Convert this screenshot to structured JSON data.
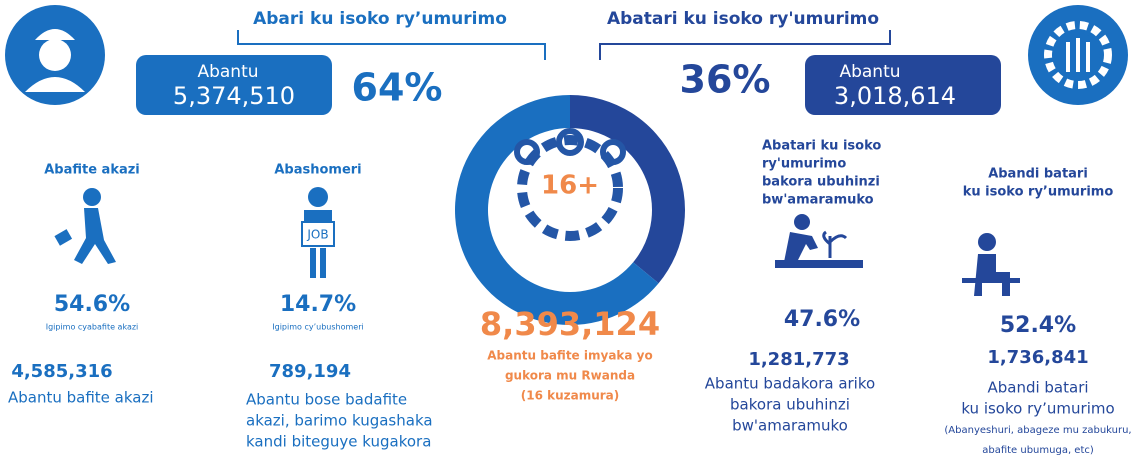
{
  "left": {
    "title": "Abari ku isoko ry’umurimo",
    "people_label": "Abantu",
    "people": "5,374,510",
    "share": {
      "value": 64,
      "label": "64%"
    }
  },
  "right": {
    "title": "Abatari ku isoko ry'umurimo",
    "people_label": "Abantu",
    "people": "3,018,614",
    "share": {
      "value": 36,
      "label": "36%"
    }
  },
  "center": {
    "badge": "16+",
    "total": "8,393,124",
    "caption": [
      "Abantu bafite imyaka yo",
      "gukora mu Rwanda",
      "(16 kuzamura)"
    ]
  },
  "groups": [
    {
      "title": [
        "Abafite akazi"
      ],
      "rate": "54.6%",
      "rate_label": "Igipimo cyabafite akazi",
      "count": "4,585,316",
      "description": [
        "Abantu bafite akazi"
      ]
    },
    {
      "title": [
        "Abashomeri"
      ],
      "icon_text": "JOB",
      "rate": "14.7%",
      "rate_label": "Igipimo cy’ubushomeri",
      "count": "789,194",
      "description": [
        "Abantu bose badafite",
        "akazi, barimo kugashaka",
        "kandi biteguye kugakora"
      ]
    },
    {
      "title": [
        "Abatari ku isoko",
        "ry'umurimo",
        "bakora ubuhinzi",
        "bw'amaramuko"
      ],
      "rate": "47.6%",
      "count": "1,281,773",
      "description": [
        "Abantu badakora ariko",
        "bakora ubuhinzi",
        "bw'amaramuko"
      ]
    },
    {
      "title": [
        "Abandi batari",
        "ku isoko ry’umurimo"
      ],
      "rate": "52.4%",
      "count": "1,736,841",
      "description": [
        "Abandi batari",
        "ku isoko ry’umurimo",
        "(Abanyeshuri, abageze mu zabukuru,",
        "abafite ubumuga, etc)"
      ]
    }
  ]
}
